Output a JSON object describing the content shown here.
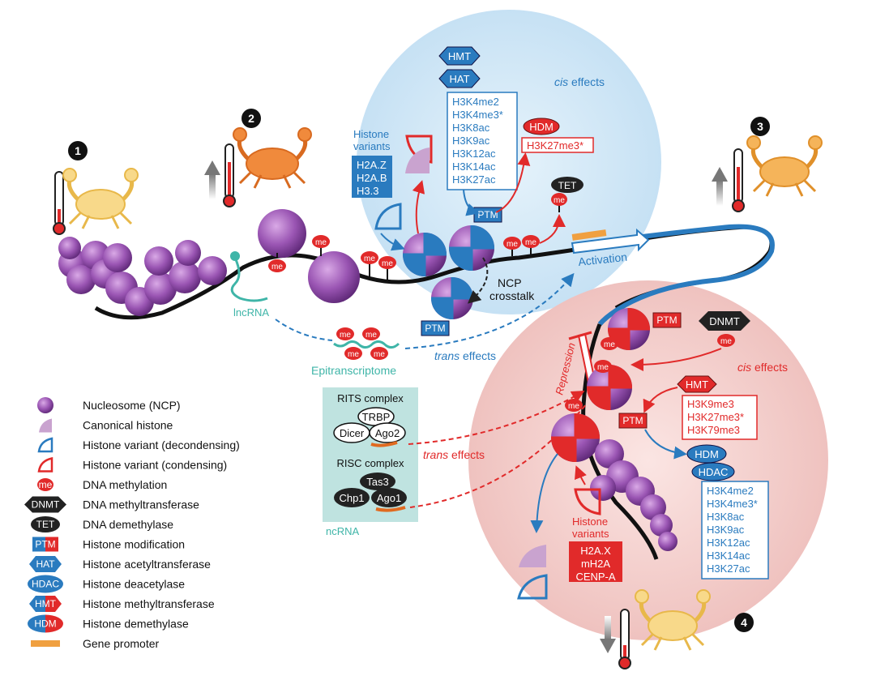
{
  "panels": {
    "p1": "1",
    "p2": "2",
    "p3": "3",
    "p4": "4"
  },
  "labels": {
    "ptm": "PTM",
    "me": "me",
    "hmt": "HMT",
    "hat": "HAT",
    "hdm": "HDM",
    "hdac": "HDAC",
    "tet": "TET",
    "dnmt": "DNMT",
    "cis_italic": "cis",
    "cis_rest": " effects",
    "trans_italic": "trans",
    "trans_rest": " effects",
    "activation": "Activation",
    "repression": "Repression",
    "ncp_crosstalk_1": "NCP",
    "ncp_crosstalk_2": "crosstalk",
    "lncrna": "lncRNA",
    "epitranscriptome": "Epitranscriptome",
    "histone_variants_1": "Histone",
    "histone_variants_2": "variants"
  },
  "blue_variants": [
    "H2A.Z",
    "H2A.B",
    "H3.3"
  ],
  "red_variants": [
    "H2A.X",
    "mH2A",
    "CENP-A"
  ],
  "cis_blue_marks": [
    "H3K4me2",
    "H3K4me3*",
    "H3K8ac",
    "H3K9ac",
    "H3K12ac",
    "H3K14ac",
    "H3K27ac"
  ],
  "hdm_blue_mark": "H3K27me3*",
  "cis_red_marks": [
    "H3K9me3",
    "H3K27me3*",
    "H3K79me3"
  ],
  "red_removed_marks": [
    "H3K4me2",
    "H3K4me3*",
    "H3K8ac",
    "H3K9ac",
    "H3K12ac",
    "H3K14ac",
    "H3K27ac"
  ],
  "ncrna": {
    "rits_title": "RITS complex",
    "trbp": "TRBP",
    "dicer": "Dicer",
    "ago2": "Ago2",
    "risc_title": "RISC complex",
    "tas3": "Tas3",
    "chp1": "Chp1",
    "ago1": "Ago1",
    "label": "ncRNA"
  },
  "legend": [
    {
      "icon": "nucleosome",
      "label": "Nucleosome (NCP)"
    },
    {
      "icon": "canonical",
      "label": "Canonical histone"
    },
    {
      "icon": "variant-blue",
      "label": "Histone variant (decondensing)"
    },
    {
      "icon": "variant-red",
      "label": "Histone variant (condensing)"
    },
    {
      "icon": "me",
      "label": "DNA methylation",
      "badge": "me"
    },
    {
      "icon": "dnmt",
      "label": "DNA methyltransferase",
      "badge": "DNMT"
    },
    {
      "icon": "tet",
      "label": "DNA demethylase",
      "badge": "TET"
    },
    {
      "icon": "ptm",
      "label": "Histone modification",
      "badge": "PTM"
    },
    {
      "icon": "hat",
      "label": "Histone acetyltransferase",
      "badge": "HAT"
    },
    {
      "icon": "hdac",
      "label": "Histone deacetylase",
      "badge": "HDAC"
    },
    {
      "icon": "hmt",
      "label": "Histone methyltransferase",
      "badge": "HMT"
    },
    {
      "icon": "hdm",
      "label": "Histone demethylase",
      "badge": "HDM"
    },
    {
      "icon": "promoter",
      "label": "Gene promoter"
    }
  ],
  "colors": {
    "blue": "#2a7bbf",
    "red": "#e12a2a",
    "purple": "#8a4aa0",
    "lightblue_bg": "#d6ebf8",
    "pink_bg": "#f7d5d3",
    "teal": "#3fb5a8",
    "orange": "#f0a040",
    "ncrna_box": "#bfe3e0"
  }
}
